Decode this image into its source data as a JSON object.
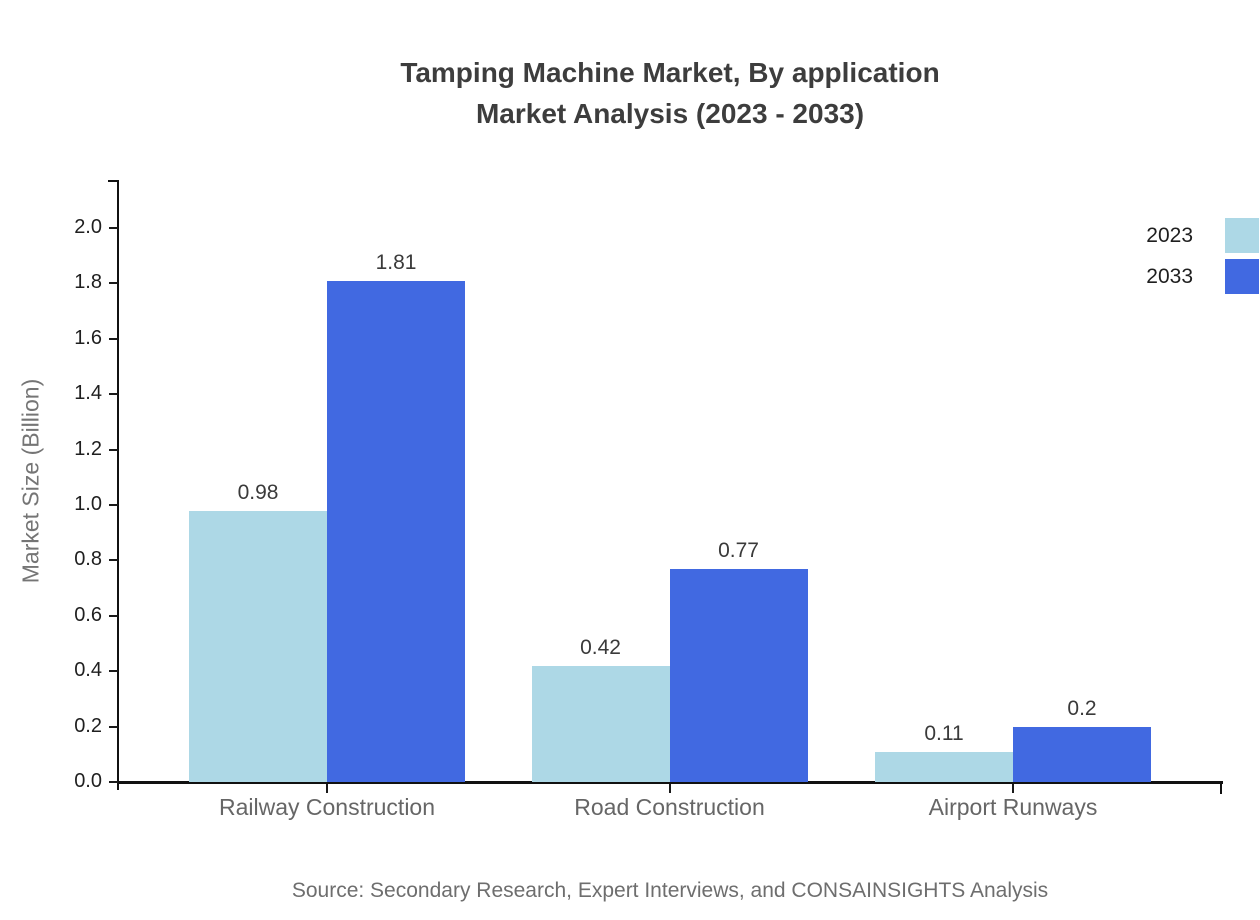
{
  "title": {
    "line1": "Tamping Machine Market, By application",
    "line2": "Market Analysis (2023 - 2033)"
  },
  "legend": [
    {
      "label": "2023",
      "color": "#ADD8E6"
    },
    {
      "label": "2033",
      "color": "#4169E1"
    }
  ],
  "source": {
    "note": "Source: Secondary Research, Expert Interviews, and CONSAINSIGHTS Analysis"
  },
  "chart_data": {
    "type": "bar",
    "title": "Tamping Machine Market, By application Market Analysis (2023 - 2033)",
    "categories": [
      "Railway Construction",
      "Road Construction",
      "Airport Runways"
    ],
    "series": [
      {
        "name": "2023",
        "color": "#ADD8E6",
        "values": [
          0.98,
          0.42,
          0.11
        ]
      },
      {
        "name": "2033",
        "color": "#4169E1",
        "values": [
          1.81,
          0.77,
          0.2
        ]
      }
    ],
    "xlabel": "",
    "ylabel": "Market Size (Billion)",
    "ylim": [
      0,
      2.17
    ],
    "yticks": [
      0.0,
      0.2,
      0.4,
      0.6,
      0.8,
      1.0,
      1.2,
      1.4,
      1.6,
      1.8,
      2.0
    ],
    "grid": false,
    "legend_position": "upper right outside"
  }
}
